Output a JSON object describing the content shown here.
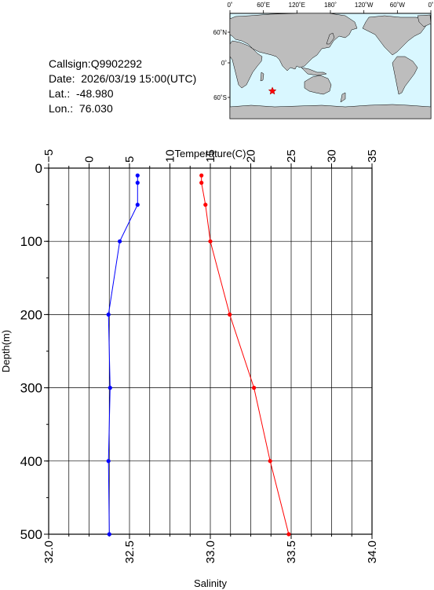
{
  "info": {
    "callsign": "Callsign:Q9902292",
    "date": "Date:  2026/03/19 15:00(UTC)",
    "lat": "Lat.:  -48.980",
    "lon": "Lon.:  76.030"
  },
  "map": {
    "lon_labels": [
      "0˚",
      "60˚E",
      "120˚E",
      "180˚",
      "120˚W",
      "60˚W",
      "0˚"
    ],
    "lat_labels": [
      "60˚N",
      "0˚",
      "60˚S"
    ],
    "marker": {
      "lat": -48.98,
      "lon": 76.03,
      "symbol": "star"
    },
    "ocean_color": "#d9f7ff",
    "land_color": "#bdbdbd"
  },
  "chart_data": {
    "type": "line",
    "xlabel_top": "Temperature(C)",
    "xlabel_bottom": "Salinity",
    "ylabel": "Depth(m)",
    "ylim": [
      0,
      500
    ],
    "temperature_lim": [
      -5,
      35
    ],
    "salinity_lim": [
      32.0,
      34.0
    ],
    "y_ticks": [
      "0",
      "100",
      "200",
      "300",
      "400",
      "500"
    ],
    "temperature_ticks": [
      "−5",
      "0",
      "5",
      "10",
      "15",
      "20",
      "25",
      "30",
      "35"
    ],
    "salinity_ticks": [
      "32.0",
      "32.5",
      "33.0",
      "33.5",
      "34.0"
    ],
    "grid": true,
    "series": [
      {
        "name": "Temperature",
        "axis": "top",
        "color": "#ff0000",
        "depth": [
          10,
          20,
          50,
          100,
          200,
          300,
          400,
          500
        ],
        "values": [
          13.9,
          13.9,
          14.4,
          15.0,
          17.4,
          20.4,
          22.4,
          24.7
        ]
      },
      {
        "name": "Salinity",
        "axis": "bottom",
        "color": "#0000ff",
        "depth": [
          10,
          20,
          50,
          100,
          200,
          300,
          400,
          500
        ],
        "values": [
          32.55,
          32.55,
          32.55,
          32.44,
          32.37,
          32.38,
          32.37,
          32.375
        ]
      }
    ]
  }
}
